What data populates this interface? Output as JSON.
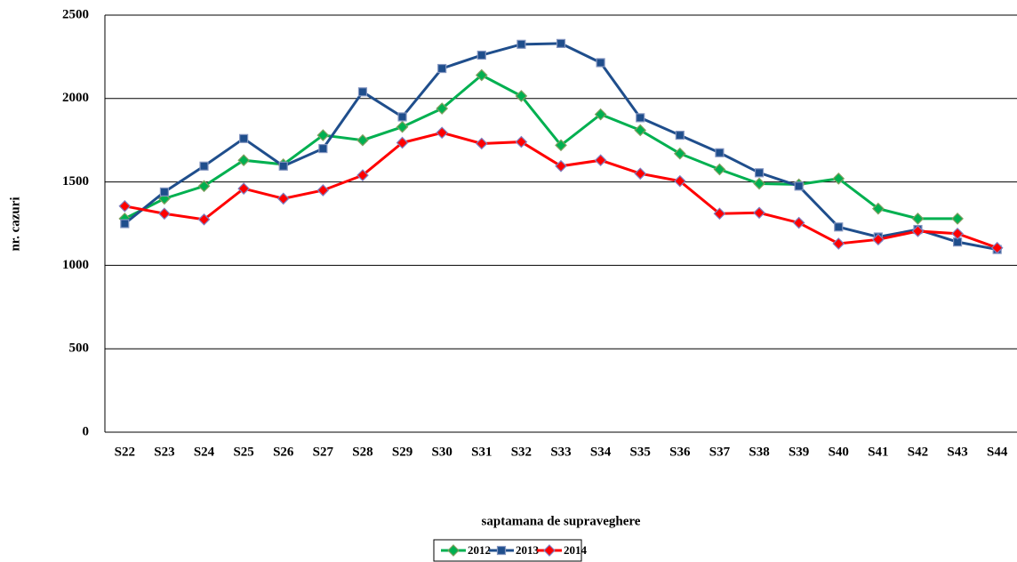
{
  "chart_data": {
    "type": "line",
    "x_label": "saptamana de supraveghere",
    "y_label": "nr. cazuri",
    "categories": [
      "S22",
      "S23",
      "S24",
      "S25",
      "S26",
      "S27",
      "S28",
      "S29",
      "S30",
      "S31",
      "S32",
      "S33",
      "S34",
      "S35",
      "S36",
      "S37",
      "S38",
      "S39",
      "S40",
      "S41",
      "S42",
      "S43",
      "S44"
    ],
    "series": [
      {
        "name": "2012",
        "color": "#00b050",
        "marker": "diamond",
        "marker_edge": "#7f9f5f",
        "values": [
          1280,
          1400,
          1475,
          1630,
          1605,
          1780,
          1750,
          1830,
          1940,
          2140,
          2015,
          1720,
          1905,
          1810,
          1670,
          1575,
          1490,
          1485,
          1520,
          1340,
          1280,
          1280,
          null
        ]
      },
      {
        "name": "2013",
        "color": "#1f4e8c",
        "marker": "square",
        "marker_edge": "#8496c0",
        "values": [
          1250,
          1440,
          1595,
          1760,
          1595,
          1700,
          2040,
          1890,
          2180,
          2260,
          2325,
          2330,
          2215,
          1885,
          1780,
          1675,
          1555,
          1475,
          1230,
          1170,
          1215,
          1140,
          1095
        ]
      },
      {
        "name": "2014",
        "color": "#ff0000",
        "marker": "diamond",
        "marker_edge": "#7f7fc0",
        "values": [
          1355,
          1310,
          1275,
          1460,
          1400,
          1450,
          1540,
          1735,
          1795,
          1730,
          1740,
          1595,
          1630,
          1550,
          1505,
          1310,
          1315,
          1255,
          1130,
          1155,
          1205,
          1190,
          1105
        ]
      }
    ],
    "ylim": [
      0,
      2500
    ],
    "yticks": [
      0,
      500,
      1000,
      1500,
      2000,
      2500
    ],
    "grid": true,
    "legend": "bottom"
  }
}
